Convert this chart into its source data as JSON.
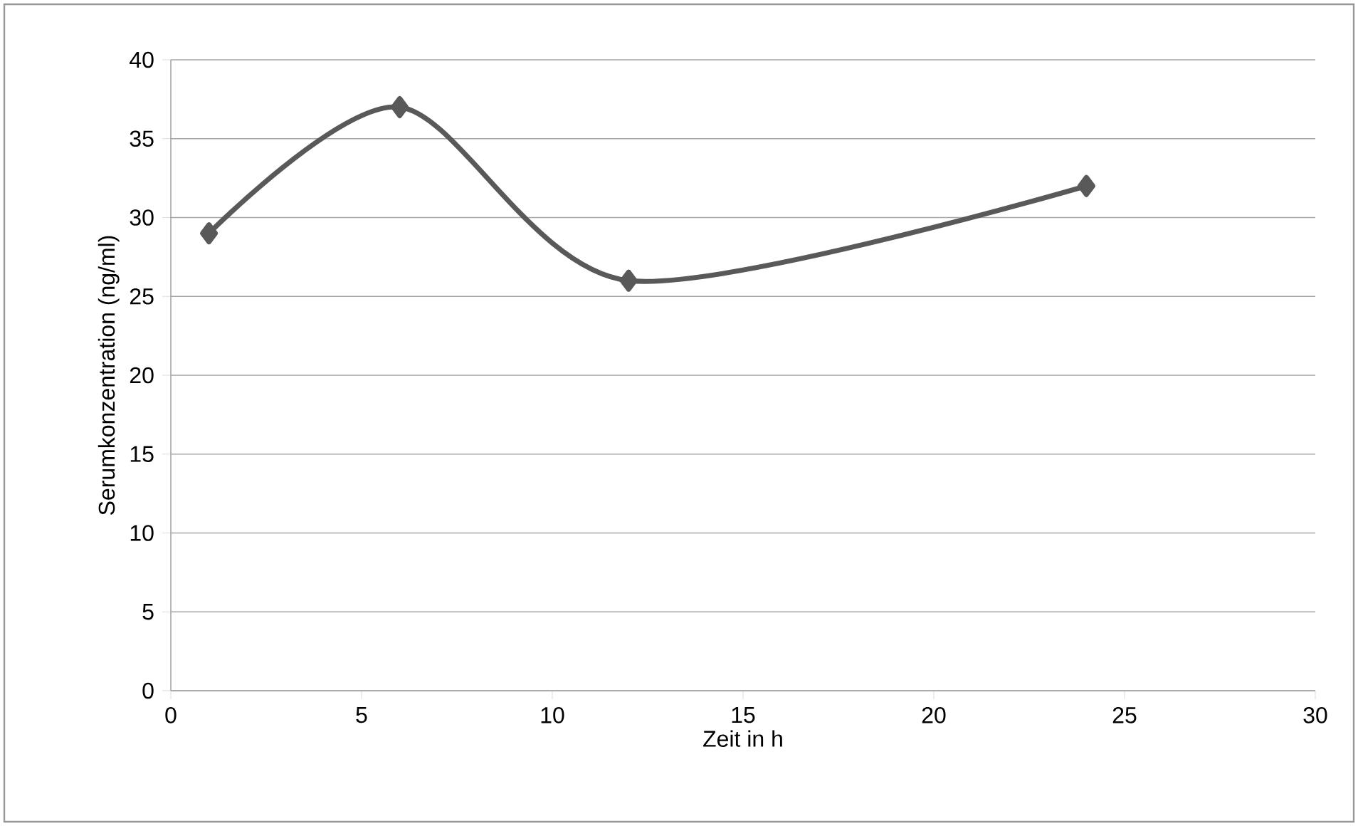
{
  "chart_data": {
    "type": "line",
    "x": [
      1,
      6,
      12,
      24
    ],
    "values": [
      29,
      37,
      26,
      32
    ],
    "color": "#595959",
    "xlabel": "Zeit in h",
    "ylabel": "Serumkonzentration (ng/ml)",
    "xlim": [
      0,
      30
    ],
    "ylim": [
      0,
      40
    ],
    "xticks": [
      0,
      5,
      10,
      15,
      20,
      25,
      30
    ],
    "yticks": [
      0,
      5,
      10,
      15,
      20,
      25,
      30,
      35,
      40
    ],
    "grid": "y",
    "marker": "diamond",
    "line_style": "solid"
  }
}
